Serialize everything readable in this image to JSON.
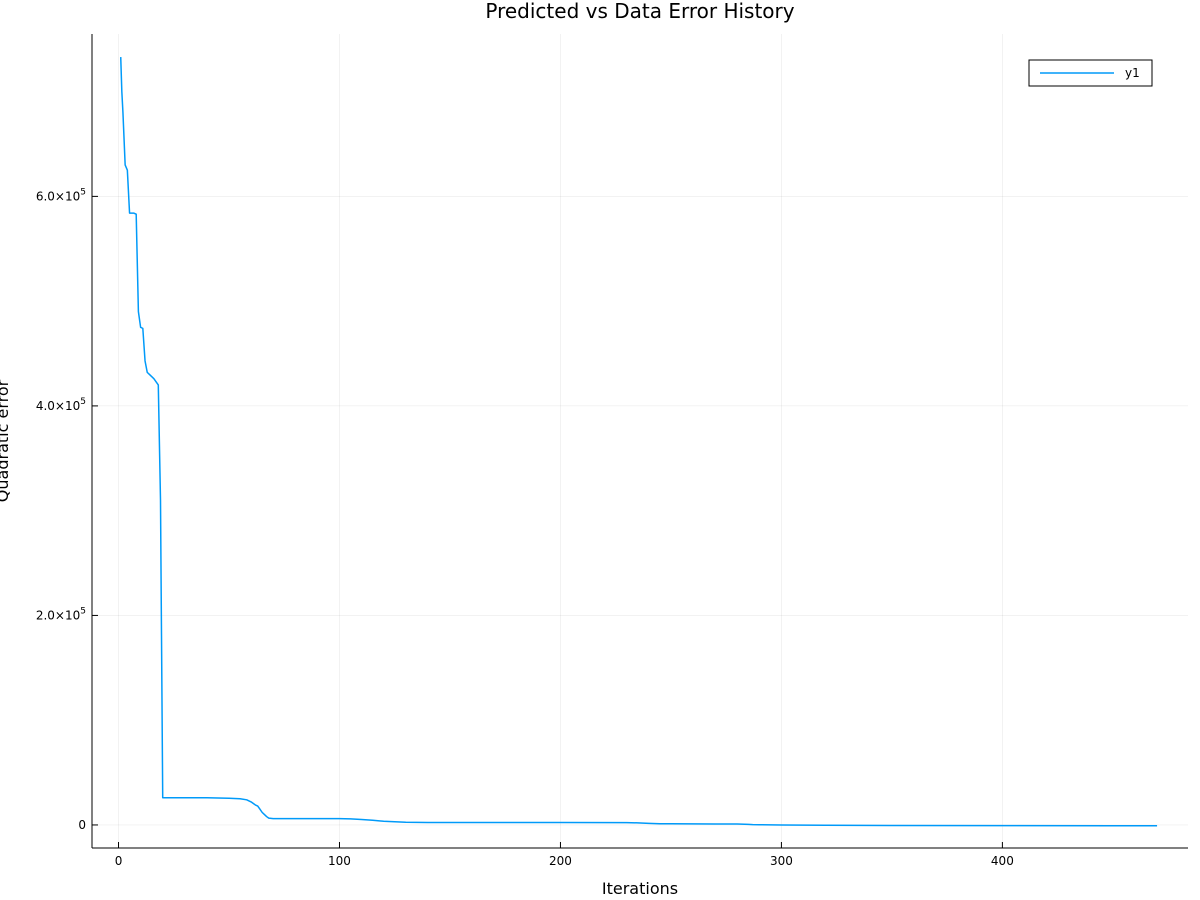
{
  "chart_data": {
    "type": "line",
    "title": "Predicted vs Data Error History",
    "xlabel": "Iterations",
    "ylabel": "Quadratic error",
    "xlim": [
      -12,
      484
    ],
    "ylim": [
      -22000,
      755000
    ],
    "xticks": [
      {
        "value": 0,
        "label": "0"
      },
      {
        "value": 100,
        "label": "100"
      },
      {
        "value": 200,
        "label": "200"
      },
      {
        "value": 300,
        "label": "300"
      },
      {
        "value": 400,
        "label": "400"
      }
    ],
    "yticks": [
      {
        "value": 0,
        "mantissa": "0",
        "exp": ""
      },
      {
        "value": 200000,
        "mantissa": "2.0×10",
        "exp": "5"
      },
      {
        "value": 400000,
        "mantissa": "4.0×10",
        "exp": "5"
      },
      {
        "value": 600000,
        "mantissa": "6.0×10",
        "exp": "5"
      }
    ],
    "grid": true,
    "legend_position": "top-right",
    "series_color": "#009af9",
    "series": [
      {
        "name": "y1",
        "x": [
          1,
          1.5,
          2,
          3,
          4,
          5,
          6,
          7,
          8,
          9,
          10,
          11,
          12,
          13,
          14,
          15,
          16,
          17,
          18,
          19,
          20,
          21,
          22,
          30,
          40,
          50,
          55,
          58,
          60,
          62,
          63,
          64,
          65,
          66,
          67,
          68,
          70,
          72,
          80,
          90,
          100,
          105,
          110,
          115,
          120,
          125,
          130,
          140,
          150,
          180,
          200,
          230,
          235,
          240,
          245,
          250,
          260,
          270,
          280,
          285,
          287,
          290,
          300,
          320,
          350,
          400,
          450,
          470
        ],
        "y": [
          733000,
          700000,
          680000,
          630000,
          625000,
          584000,
          584000,
          584000,
          583000,
          490000,
          475000,
          474000,
          443000,
          432000,
          430000,
          428000,
          426000,
          423000,
          420000,
          310000,
          26000,
          26000,
          26000,
          26000,
          26000,
          25500,
          25000,
          24000,
          22000,
          19000,
          18000,
          15000,
          12000,
          10000,
          8000,
          6500,
          6000,
          6000,
          6000,
          6000,
          6000,
          5800,
          5200,
          4500,
          3500,
          3000,
          2600,
          2400,
          2300,
          2300,
          2300,
          2200,
          2000,
          1500,
          1200,
          1100,
          1000,
          900,
          850,
          600,
          300,
          200,
          0,
          -300,
          -500,
          -600,
          -700,
          -700
        ]
      }
    ]
  }
}
